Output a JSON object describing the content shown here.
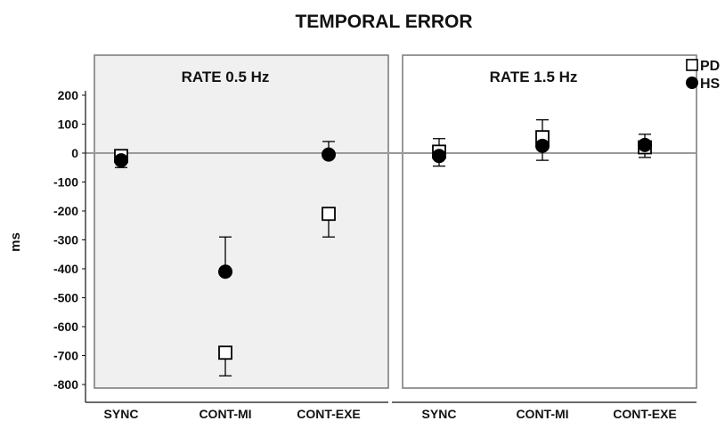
{
  "chart_data": {
    "type": "scatter",
    "title": "TEMPORAL ERROR",
    "ylabel": "ms",
    "ylim": [
      -820,
      230
    ],
    "yticks": [
      200,
      100,
      0,
      -100,
      -200,
      -300,
      -400,
      -500,
      -600,
      -700,
      -800
    ],
    "legend": {
      "placement": "top-right",
      "entries": [
        {
          "name": "PD",
          "marker": "open-square"
        },
        {
          "name": "HS",
          "marker": "filled-circle"
        }
      ]
    },
    "panels": [
      {
        "label": "RATE 0.5 Hz",
        "shaded": true,
        "categories": [
          "SYNC",
          "CONT-MI",
          "CONT-EXE"
        ],
        "series": [
          {
            "name": "PD",
            "values": [
              -10,
              -690,
              -210
            ],
            "error_upper": [
              0,
              0,
              0
            ],
            "error_lower": [
              0,
              80,
              80
            ]
          },
          {
            "name": "HS",
            "values": [
              -25,
              -410,
              -5
            ],
            "error_upper": [
              30,
              120,
              45
            ],
            "error_lower": [
              25,
              0,
              0
            ]
          }
        ]
      },
      {
        "label": "RATE 1.5 Hz",
        "shaded": false,
        "categories": [
          "SYNC",
          "CONT-MI",
          "CONT-EXE"
        ],
        "series": [
          {
            "name": "PD",
            "values": [
              5,
              55,
              20
            ],
            "error_upper": [
              45,
              60,
              45
            ],
            "error_lower": [
              50,
              80,
              35
            ]
          },
          {
            "name": "HS",
            "values": [
              -10,
              25,
              28
            ],
            "error_upper": [
              0,
              0,
              0
            ],
            "error_lower": [
              0,
              0,
              0
            ]
          }
        ]
      }
    ],
    "colors": {
      "panel_fill": "#f0f0f0",
      "zero_line": "#9a9a9a",
      "frame": "#7f7f7f",
      "marker": "#000000"
    }
  }
}
